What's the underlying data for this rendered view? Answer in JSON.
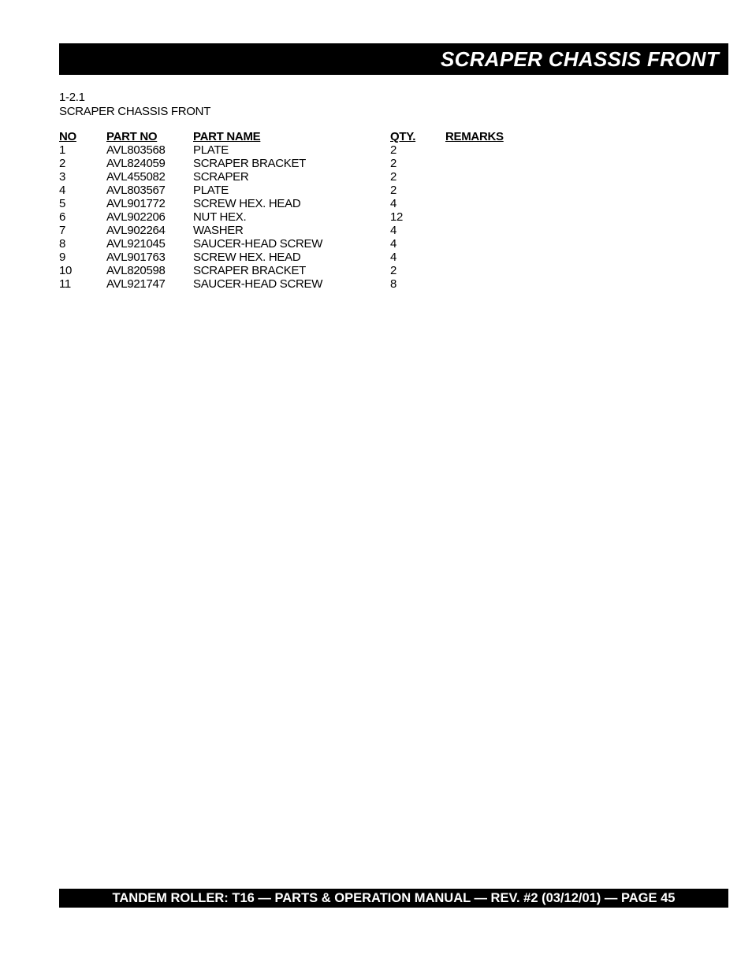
{
  "header": {
    "title": "SCRAPER CHASSIS FRONT"
  },
  "section": {
    "number": "1-2.1",
    "title": "SCRAPER CHASSIS FRONT"
  },
  "table": {
    "columns": [
      "NO",
      "PART NO",
      "PART NAME",
      "QTY.",
      "REMARKS"
    ],
    "rows": [
      [
        "1",
        "AVL803568",
        "PLATE",
        "2",
        ""
      ],
      [
        "2",
        "AVL824059",
        "SCRAPER BRACKET",
        "2",
        ""
      ],
      [
        "3",
        "AVL455082",
        "SCRAPER",
        "2",
        ""
      ],
      [
        "4",
        "AVL803567",
        "PLATE",
        "2",
        ""
      ],
      [
        "5",
        "AVL901772",
        "SCREW HEX. HEAD",
        "4",
        ""
      ],
      [
        "6",
        "AVL902206",
        "NUT HEX.",
        "12",
        ""
      ],
      [
        "7",
        "AVL902264",
        "WASHER",
        "4",
        ""
      ],
      [
        "8",
        "AVL921045",
        "SAUCER-HEAD SCREW",
        "4",
        ""
      ],
      [
        "9",
        "AVL901763",
        "SCREW HEX. HEAD",
        "4",
        ""
      ],
      [
        "10",
        "AVL820598",
        "SCRAPER BRACKET",
        "2",
        ""
      ],
      [
        "11",
        "AVL921747",
        "SAUCER-HEAD SCREW",
        "8",
        ""
      ]
    ]
  },
  "footer": {
    "text": "TANDEM ROLLER: T16 — PARTS & OPERATION MANUAL — REV. #2 (03/12/01) — PAGE 45"
  }
}
